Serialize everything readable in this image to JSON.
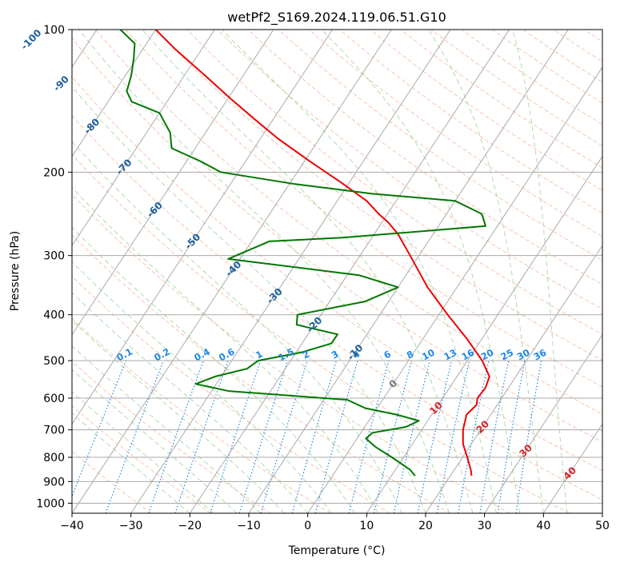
{
  "chart_data": {
    "type": "line",
    "title": "wetPf2_S169.2024.119.06.51.G10",
    "xlabel": "Temperature (°C)",
    "ylabel": "Pressure (hPa)",
    "xlim": [
      -40,
      50
    ],
    "ylim": [
      1050,
      100
    ],
    "y_scale": "log",
    "x_ticks": [
      -40,
      -30,
      -20,
      -10,
      0,
      10,
      20,
      30,
      40,
      50
    ],
    "y_ticks": [
      100,
      200,
      300,
      400,
      500,
      600,
      700,
      800,
      900,
      1000
    ],
    "grid": true,
    "skew_t": true,
    "colors": {
      "temperature": "#ee0000",
      "dewpoint": "#007700",
      "isotherms": "#aaaaaa",
      "dry_adiabats": "#f4a582",
      "moist_adiabats": "#4daf4a",
      "mixing_ratio": "#1e88e5",
      "dry_adiabat_labels": "#d62728",
      "isotherm_labels": "#1f5f9a",
      "zero_isotherm_label": "#777777"
    },
    "isotherm_labels": [
      "-100",
      "-90",
      "-80",
      "-70",
      "-60",
      "-50",
      "-40",
      "-30",
      "-20",
      "-10",
      "0"
    ],
    "dry_adiabat_labels": [
      "10",
      "20",
      "30",
      "40"
    ],
    "mixing_ratio_labels": [
      "0.1",
      "0.2",
      "0.4",
      "0.6",
      "1",
      "1.5",
      "2",
      "3",
      "4",
      "6",
      "8",
      "10",
      "13",
      "16",
      "20",
      "25",
      "30",
      "36"
    ],
    "series": [
      {
        "name": "temperature",
        "points": [
          [
            875,
            23.6
          ],
          [
            850,
            22.8
          ],
          [
            800,
            20.8
          ],
          [
            750,
            18.6
          ],
          [
            700,
            17.0
          ],
          [
            650,
            15.9
          ],
          [
            620,
            16.5
          ],
          [
            600,
            15.9
          ],
          [
            570,
            16.1
          ],
          [
            540,
            15.5
          ],
          [
            500,
            12.5
          ],
          [
            450,
            7.5
          ],
          [
            400,
            1.5
          ],
          [
            350,
            -5.0
          ],
          [
            300,
            -11.5
          ],
          [
            270,
            -16.0
          ],
          [
            255,
            -19.0
          ],
          [
            245,
            -21.5
          ],
          [
            230,
            -25.0
          ],
          [
            210,
            -31.5
          ],
          [
            190,
            -39.0
          ],
          [
            170,
            -47.0
          ],
          [
            155,
            -53.0
          ],
          [
            140,
            -59.5
          ],
          [
            125,
            -66.5
          ],
          [
            110,
            -74.5
          ],
          [
            100,
            -80.0
          ]
        ]
      },
      {
        "name": "dewpoint",
        "points": [
          [
            875,
            14.0
          ],
          [
            850,
            12.5
          ],
          [
            800,
            8.0
          ],
          [
            760,
            4.0
          ],
          [
            730,
            1.5
          ],
          [
            710,
            2.0
          ],
          [
            690,
            7.0
          ],
          [
            670,
            8.5
          ],
          [
            650,
            4.0
          ],
          [
            630,
            -2.0
          ],
          [
            605,
            -6.0
          ],
          [
            580,
            -27.0
          ],
          [
            560,
            -33.5
          ],
          [
            540,
            -31.0
          ],
          [
            520,
            -26.5
          ],
          [
            500,
            -25.5
          ],
          [
            480,
            -19.0
          ],
          [
            460,
            -15.0
          ],
          [
            440,
            -15.0
          ],
          [
            420,
            -23.0
          ],
          [
            400,
            -24.0
          ],
          [
            375,
            -14.0
          ],
          [
            350,
            -10.0
          ],
          [
            330,
            -18.0
          ],
          [
            305,
            -42.0
          ],
          [
            280,
            -37.0
          ],
          [
            275,
            -25.0
          ],
          [
            260,
            -2.0
          ],
          [
            245,
            -4.0
          ],
          [
            230,
            -10.0
          ],
          [
            222,
            -25.0
          ],
          [
            212,
            -39.0
          ],
          [
            200,
            -53.0
          ],
          [
            190,
            -57.5
          ],
          [
            178,
            -64.0
          ],
          [
            165,
            -66.0
          ],
          [
            150,
            -70.0
          ],
          [
            142,
            -76.0
          ],
          [
            135,
            -78.0
          ],
          [
            125,
            -79.0
          ],
          [
            115,
            -80.5
          ],
          [
            107,
            -82.0
          ],
          [
            100,
            -86.0
          ]
        ]
      }
    ]
  }
}
